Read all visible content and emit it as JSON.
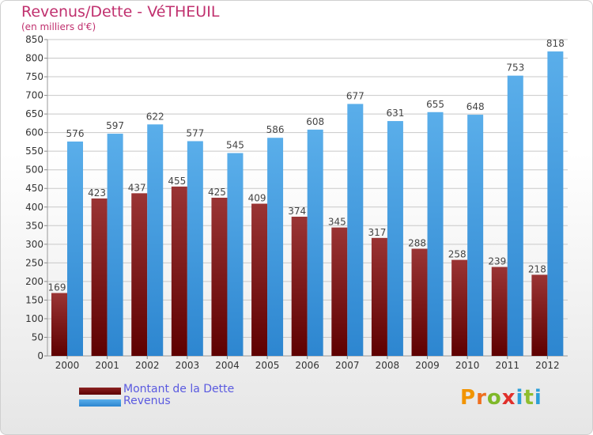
{
  "title": "Revenus/Dette - VéTHEUIL",
  "subtitle": "(en milliers d'€)",
  "logo_text": "Proxiti",
  "chart_data": {
    "type": "bar",
    "categories": [
      "2000",
      "2001",
      "2002",
      "2003",
      "2004",
      "2005",
      "2006",
      "2007",
      "2008",
      "2009",
      "2010",
      "2011",
      "2012"
    ],
    "series": [
      {
        "name": "Montant de la Dette",
        "color": "#7a1010",
        "values": [
          169,
          423,
          437,
          455,
          425,
          409,
          374,
          345,
          317,
          288,
          258,
          239,
          218
        ]
      },
      {
        "name": "Revenus",
        "color": "#3d9be0",
        "values": [
          576,
          597,
          622,
          577,
          545,
          586,
          608,
          677,
          631,
          655,
          648,
          753,
          818
        ]
      }
    ],
    "yticks": [
      0,
      50,
      100,
      150,
      200,
      250,
      300,
      350,
      400,
      450,
      500,
      550,
      600,
      650,
      700,
      750,
      800,
      850
    ],
    "ylim": [
      0,
      850
    ],
    "grid": true,
    "legend": "bottom-left"
  }
}
